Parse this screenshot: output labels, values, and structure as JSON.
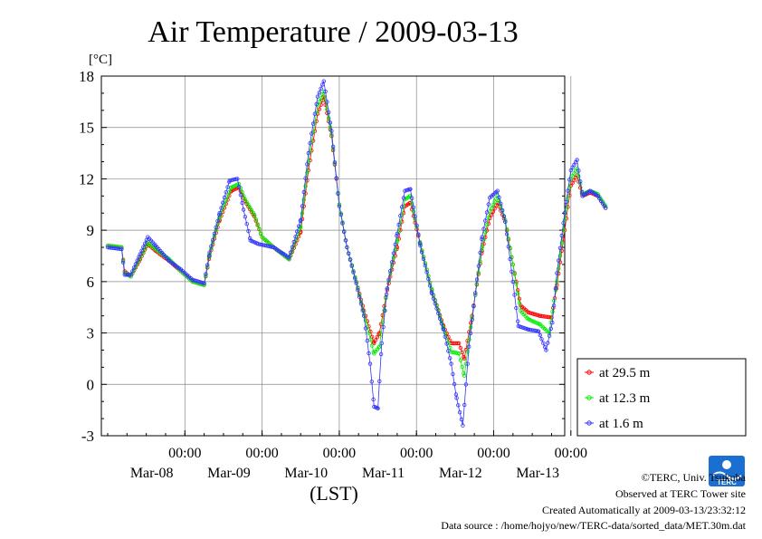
{
  "chart_data": {
    "type": "line",
    "title": "Air Temperature / 2009-03-13",
    "ylabel": "[°C]",
    "xlabel": "(LST)",
    "ylim": [
      -3,
      18
    ],
    "xlim": [
      0,
      6.0
    ],
    "yticks": [
      -3,
      0,
      3,
      6,
      9,
      12,
      15,
      18
    ],
    "xticks": [
      {
        "x": 1,
        "time": "00:00",
        "date": "Mar-08"
      },
      {
        "x": 2,
        "time": "00:00",
        "date": "Mar-09"
      },
      {
        "x": 3,
        "time": "00:00",
        "date": "Mar-10"
      },
      {
        "x": 4,
        "time": "00:00",
        "date": "Mar-11"
      },
      {
        "x": 5,
        "time": "00:00",
        "date": "Mar-12"
      },
      {
        "x": 6,
        "time": "00:00",
        "date": "Mar-13"
      }
    ],
    "grid": true,
    "legend_position": "bottom-right outside",
    "series": [
      {
        "name": "at 29.5 m",
        "color": "#ff0000",
        "keypoints": [
          [
            0,
            8.1
          ],
          [
            0.18,
            8.0
          ],
          [
            0.22,
            6.6
          ],
          [
            0.3,
            6.3
          ],
          [
            0.42,
            7.3
          ],
          [
            0.52,
            8.2
          ],
          [
            0.62,
            7.8
          ],
          [
            0.8,
            7.2
          ],
          [
            0.95,
            6.6
          ],
          [
            1.1,
            6.0
          ],
          [
            1.25,
            5.8
          ],
          [
            1.32,
            7.5
          ],
          [
            1.45,
            9.6
          ],
          [
            1.6,
            11.3
          ],
          [
            1.7,
            11.5
          ],
          [
            1.78,
            10.7
          ],
          [
            1.9,
            9.8
          ],
          [
            2.0,
            8.6
          ],
          [
            2.15,
            8.0
          ],
          [
            2.35,
            7.3
          ],
          [
            2.5,
            8.9
          ],
          [
            2.6,
            12.5
          ],
          [
            2.72,
            15.8
          ],
          [
            2.8,
            16.8
          ],
          [
            2.9,
            14.5
          ],
          [
            3.0,
            10.5
          ],
          [
            3.1,
            8.0
          ],
          [
            3.22,
            6.0
          ],
          [
            3.32,
            4.3
          ],
          [
            3.45,
            2.4
          ],
          [
            3.52,
            3.0
          ],
          [
            3.62,
            5.5
          ],
          [
            3.75,
            8.0
          ],
          [
            3.85,
            10.4
          ],
          [
            3.92,
            10.6
          ],
          [
            4.05,
            8.2
          ],
          [
            4.2,
            5.5
          ],
          [
            4.35,
            3.4
          ],
          [
            4.45,
            2.4
          ],
          [
            4.55,
            2.4
          ],
          [
            4.62,
            1.5
          ],
          [
            4.72,
            4.0
          ],
          [
            4.85,
            7.8
          ],
          [
            4.95,
            9.7
          ],
          [
            5.05,
            10.6
          ],
          [
            5.15,
            9.5
          ],
          [
            5.25,
            7.0
          ],
          [
            5.35,
            4.6
          ],
          [
            5.45,
            4.2
          ],
          [
            5.6,
            4.0
          ],
          [
            5.75,
            3.9
          ],
          [
            5.82,
            5.8
          ],
          [
            5.92,
            9.0
          ],
          [
            6.0,
            11.6
          ],
          [
            6.08,
            12.2
          ],
          [
            6.15,
            11.0
          ],
          [
            6.25,
            11.2
          ],
          [
            6.35,
            11.0
          ],
          [
            6.45,
            10.3
          ]
        ]
      },
      {
        "name": "at 12.3 m",
        "color": "#00ee00",
        "keypoints": [
          [
            0,
            8.1
          ],
          [
            0.18,
            8.0
          ],
          [
            0.22,
            6.5
          ],
          [
            0.3,
            6.3
          ],
          [
            0.42,
            7.4
          ],
          [
            0.52,
            8.3
          ],
          [
            0.62,
            7.9
          ],
          [
            0.8,
            7.3
          ],
          [
            0.95,
            6.6
          ],
          [
            1.1,
            6.0
          ],
          [
            1.25,
            5.8
          ],
          [
            1.32,
            7.6
          ],
          [
            1.45,
            9.8
          ],
          [
            1.6,
            11.5
          ],
          [
            1.7,
            11.7
          ],
          [
            1.78,
            10.8
          ],
          [
            1.9,
            9.9
          ],
          [
            2.0,
            8.6
          ],
          [
            2.15,
            8.0
          ],
          [
            2.35,
            7.3
          ],
          [
            2.5,
            9.2
          ],
          [
            2.6,
            13.0
          ],
          [
            2.72,
            16.3
          ],
          [
            2.8,
            17.1
          ],
          [
            2.9,
            14.6
          ],
          [
            3.0,
            10.5
          ],
          [
            3.1,
            8.0
          ],
          [
            3.22,
            6.0
          ],
          [
            3.32,
            4.1
          ],
          [
            3.45,
            1.8
          ],
          [
            3.52,
            2.2
          ],
          [
            3.62,
            5.6
          ],
          [
            3.75,
            8.4
          ],
          [
            3.85,
            10.8
          ],
          [
            3.92,
            11.0
          ],
          [
            4.05,
            8.2
          ],
          [
            4.2,
            5.5
          ],
          [
            4.35,
            3.3
          ],
          [
            4.45,
            1.9
          ],
          [
            4.55,
            1.8
          ],
          [
            4.62,
            0.5
          ],
          [
            4.72,
            3.9
          ],
          [
            4.85,
            8.0
          ],
          [
            4.95,
            10.1
          ],
          [
            5.05,
            11.0
          ],
          [
            5.15,
            9.6
          ],
          [
            5.25,
            7.0
          ],
          [
            5.35,
            4.3
          ],
          [
            5.45,
            3.8
          ],
          [
            5.6,
            3.5
          ],
          [
            5.72,
            3.0
          ],
          [
            5.82,
            6.0
          ],
          [
            5.92,
            9.6
          ],
          [
            6.0,
            12.0
          ],
          [
            6.08,
            12.6
          ],
          [
            6.15,
            11.1
          ],
          [
            6.25,
            11.3
          ],
          [
            6.35,
            11.1
          ],
          [
            6.45,
            10.4
          ]
        ]
      },
      {
        "name": "at 1.6 m",
        "color": "#3333ff",
        "keypoints": [
          [
            0,
            8.0
          ],
          [
            0.18,
            7.9
          ],
          [
            0.22,
            6.4
          ],
          [
            0.3,
            6.4
          ],
          [
            0.42,
            7.6
          ],
          [
            0.52,
            8.6
          ],
          [
            0.62,
            8.1
          ],
          [
            0.8,
            7.2
          ],
          [
            0.95,
            6.7
          ],
          [
            1.1,
            6.1
          ],
          [
            1.25,
            5.9
          ],
          [
            1.32,
            7.7
          ],
          [
            1.45,
            10.0
          ],
          [
            1.58,
            11.9
          ],
          [
            1.68,
            12.0
          ],
          [
            1.76,
            10.2
          ],
          [
            1.85,
            8.4
          ],
          [
            1.95,
            8.2
          ],
          [
            2.15,
            8.0
          ],
          [
            2.35,
            7.4
          ],
          [
            2.5,
            9.6
          ],
          [
            2.6,
            13.5
          ],
          [
            2.72,
            16.8
          ],
          [
            2.8,
            17.7
          ],
          [
            2.9,
            14.8
          ],
          [
            3.0,
            10.4
          ],
          [
            3.1,
            8.0
          ],
          [
            3.22,
            5.9
          ],
          [
            3.32,
            4.0
          ],
          [
            3.4,
            1.2
          ],
          [
            3.45,
            -1.3
          ],
          [
            3.5,
            -1.4
          ],
          [
            3.55,
            2.4
          ],
          [
            3.62,
            5.6
          ],
          [
            3.75,
            8.8
          ],
          [
            3.85,
            11.3
          ],
          [
            3.92,
            11.4
          ],
          [
            4.05,
            8.1
          ],
          [
            4.2,
            5.3
          ],
          [
            4.35,
            3.2
          ],
          [
            4.45,
            1.2
          ],
          [
            4.52,
            -0.8
          ],
          [
            4.6,
            -2.4
          ],
          [
            4.68,
            2.2
          ],
          [
            4.85,
            8.6
          ],
          [
            4.95,
            10.9
          ],
          [
            5.05,
            11.3
          ],
          [
            5.15,
            9.5
          ],
          [
            5.25,
            6.0
          ],
          [
            5.32,
            3.4
          ],
          [
            5.45,
            3.2
          ],
          [
            5.58,
            3.1
          ],
          [
            5.68,
            2.0
          ],
          [
            5.76,
            3.6
          ],
          [
            5.82,
            6.5
          ],
          [
            5.92,
            10.0
          ],
          [
            6.0,
            12.5
          ],
          [
            6.08,
            13.1
          ],
          [
            6.15,
            11.0
          ],
          [
            6.25,
            11.3
          ],
          [
            6.35,
            11.0
          ],
          [
            6.45,
            10.3
          ]
        ]
      }
    ]
  },
  "credits": {
    "copyright": "©TERC, Univ. Tsukuba",
    "observed": "Observed at TERC Tower site",
    "created": "Created Automatically at 2009-03-13/23:32:12",
    "source": "Data source : /home/hojyo/new/TERC-data/sorted_data/MET.30m.dat"
  },
  "logo": {
    "text": "TERC",
    "color": "#1a6fd1"
  }
}
